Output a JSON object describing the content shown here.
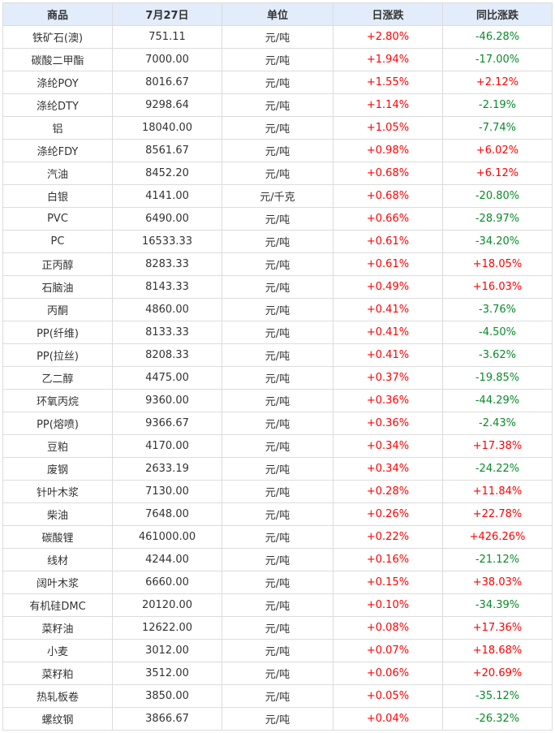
{
  "colors": {
    "up": "#ff0000",
    "down": "#0a8a2a",
    "header_bg": "#e2ecfa"
  },
  "headers": [
    "商品",
    "7月27日",
    "单位",
    "日涨跌",
    "同比涨跌"
  ],
  "rows": [
    [
      "铁矿石(澳)",
      "751.11",
      "元/吨",
      "+2.80%",
      "-46.28%"
    ],
    [
      "碳酸二甲酯",
      "7000.00",
      "元/吨",
      "+1.94%",
      "-17.00%"
    ],
    [
      "涤纶POY",
      "8016.67",
      "元/吨",
      "+1.55%",
      "+2.12%"
    ],
    [
      "涤纶DTY",
      "9298.64",
      "元/吨",
      "+1.14%",
      "-2.19%"
    ],
    [
      "铝",
      "18040.00",
      "元/吨",
      "+1.05%",
      "-7.74%"
    ],
    [
      "涤纶FDY",
      "8561.67",
      "元/吨",
      "+0.98%",
      "+6.02%"
    ],
    [
      "汽油",
      "8452.20",
      "元/吨",
      "+0.68%",
      "+6.12%"
    ],
    [
      "白银",
      "4141.00",
      "元/千克",
      "+0.68%",
      "-20.80%"
    ],
    [
      "PVC",
      "6490.00",
      "元/吨",
      "+0.66%",
      "-28.97%"
    ],
    [
      "PC",
      "16533.33",
      "元/吨",
      "+0.61%",
      "-34.20%"
    ],
    [
      "正丙醇",
      "8283.33",
      "元/吨",
      "+0.61%",
      "+18.05%"
    ],
    [
      "石脑油",
      "8143.33",
      "元/吨",
      "+0.49%",
      "+16.03%"
    ],
    [
      "丙酮",
      "4860.00",
      "元/吨",
      "+0.41%",
      "-3.76%"
    ],
    [
      "PP(纤维)",
      "8133.33",
      "元/吨",
      "+0.41%",
      "-4.50%"
    ],
    [
      "PP(拉丝)",
      "8208.33",
      "元/吨",
      "+0.41%",
      "-3.62%"
    ],
    [
      "乙二醇",
      "4475.00",
      "元/吨",
      "+0.37%",
      "-19.85%"
    ],
    [
      "环氧丙烷",
      "9360.00",
      "元/吨",
      "+0.36%",
      "-44.29%"
    ],
    [
      "PP(熔喷)",
      "9366.67",
      "元/吨",
      "+0.36%",
      "-2.43%"
    ],
    [
      "豆粕",
      "4170.00",
      "元/吨",
      "+0.34%",
      "+17.38%"
    ],
    [
      "废钢",
      "2633.19",
      "元/吨",
      "+0.34%",
      "-24.22%"
    ],
    [
      "针叶木浆",
      "7130.00",
      "元/吨",
      "+0.28%",
      "+11.84%"
    ],
    [
      "柴油",
      "7648.00",
      "元/吨",
      "+0.26%",
      "+22.78%"
    ],
    [
      "碳酸锂",
      "461000.00",
      "元/吨",
      "+0.22%",
      "+426.26%"
    ],
    [
      "线材",
      "4244.00",
      "元/吨",
      "+0.16%",
      "-21.12%"
    ],
    [
      "阔叶木浆",
      "6660.00",
      "元/吨",
      "+0.15%",
      "+38.03%"
    ],
    [
      "有机硅DMC",
      "20120.00",
      "元/吨",
      "+0.10%",
      "-34.39%"
    ],
    [
      "菜籽油",
      "12622.00",
      "元/吨",
      "+0.08%",
      "+17.36%"
    ],
    [
      "小麦",
      "3012.00",
      "元/吨",
      "+0.07%",
      "+18.68%"
    ],
    [
      "菜籽粕",
      "3512.00",
      "元/吨",
      "+0.06%",
      "+20.69%"
    ],
    [
      "热轧板卷",
      "3850.00",
      "元/吨",
      "+0.05%",
      "-35.12%"
    ],
    [
      "螺纹钢",
      "3866.67",
      "元/吨",
      "+0.04%",
      "-26.32%"
    ]
  ]
}
